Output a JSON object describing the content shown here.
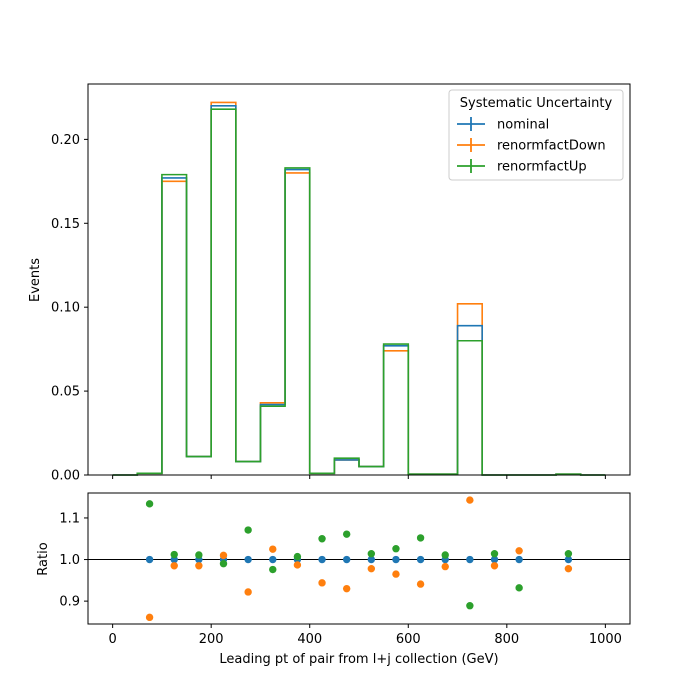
{
  "chart_data": [
    {
      "type": "line",
      "panel": "main",
      "ylabel": "Events",
      "xlim": [
        -50,
        1050
      ],
      "ylim": [
        0,
        0.233
      ],
      "x_ticks": [
        0,
        200,
        400,
        600,
        800,
        1000
      ],
      "y_ticks": [
        0.0,
        0.05,
        0.1,
        0.15,
        0.2
      ],
      "y_tick_labels": [
        "0.00",
        "0.05",
        "0.10",
        "0.15",
        "0.20"
      ],
      "bin_edges": [
        0,
        50,
        100,
        150,
        200,
        250,
        300,
        350,
        400,
        450,
        500,
        550,
        600,
        650,
        700,
        750,
        800,
        850,
        900,
        950,
        1000
      ],
      "legend": {
        "title": "Systematic Uncertainty",
        "placement": "upper right"
      },
      "series": [
        {
          "name": "nominal",
          "color": "#1f77b4",
          "values": [
            0.0,
            0.001,
            0.177,
            0.011,
            0.22,
            0.008,
            0.042,
            0.182,
            0.001,
            0.009,
            0.005,
            0.077,
            0.0005,
            0.0005,
            0.089,
            0.0,
            0.0,
            0.0,
            0.0005,
            0.0
          ]
        },
        {
          "name": "renormfactDown",
          "color": "#ff7f0e",
          "values": [
            0.0,
            0.001,
            0.175,
            0.011,
            0.222,
            0.008,
            0.043,
            0.18,
            0.001,
            0.009,
            0.005,
            0.074,
            0.0005,
            0.0005,
            0.102,
            0.0,
            0.0,
            0.0,
            0.0005,
            0.0
          ]
        },
        {
          "name": "renormfactUp",
          "color": "#2ca02c",
          "values": [
            0.0,
            0.001,
            0.179,
            0.011,
            0.218,
            0.008,
            0.041,
            0.183,
            0.001,
            0.01,
            0.005,
            0.078,
            0.0005,
            0.0005,
            0.08,
            0.0,
            0.0,
            0.0,
            0.0005,
            0.0
          ]
        }
      ]
    },
    {
      "type": "scatter",
      "panel": "ratio",
      "xlabel": "Leading pt of pair from l+j collection (GeV)",
      "ylabel": "Ratio",
      "xlim": [
        -50,
        1050
      ],
      "ylim": [
        0.845,
        1.16
      ],
      "x_ticks": [
        0,
        200,
        400,
        600,
        800,
        1000
      ],
      "x_tick_labels": [
        "0",
        "200",
        "400",
        "600",
        "800",
        "1000"
      ],
      "y_ticks": [
        0.9,
        1.0,
        1.1
      ],
      "y_tick_labels": [
        "0.9",
        "1.0",
        "1.1"
      ],
      "reference_line": 1.0,
      "x": [
        75,
        125,
        175,
        225,
        275,
        325,
        375,
        425,
        475,
        525,
        575,
        625,
        675,
        725,
        775,
        825,
        925
      ],
      "series": [
        {
          "name": "nominal",
          "color": "#1f77b4",
          "values": [
            1.0,
            1.0,
            1.0,
            1.0,
            1.0,
            1.0,
            1.0,
            1.0,
            1.0,
            1.0,
            1.0,
            1.0,
            1.0,
            1.0,
            1.0,
            1.0,
            1.0
          ]
        },
        {
          "name": "renormfactDown",
          "color": "#ff7f0e",
          "values": [
            0.861,
            0.985,
            0.985,
            1.01,
            0.922,
            1.025,
            0.987,
            0.944,
            0.93,
            0.978,
            0.965,
            0.941,
            0.983,
            1.143,
            0.985,
            1.021,
            0.978
          ]
        },
        {
          "name": "renormfactUp",
          "color": "#2ca02c",
          "values": [
            1.134,
            1.012,
            1.011,
            0.99,
            1.071,
            0.976,
            1.007,
            1.05,
            1.061,
            1.014,
            1.026,
            1.052,
            1.011,
            0.889,
            1.014,
            0.932,
            1.014
          ]
        }
      ]
    }
  ]
}
